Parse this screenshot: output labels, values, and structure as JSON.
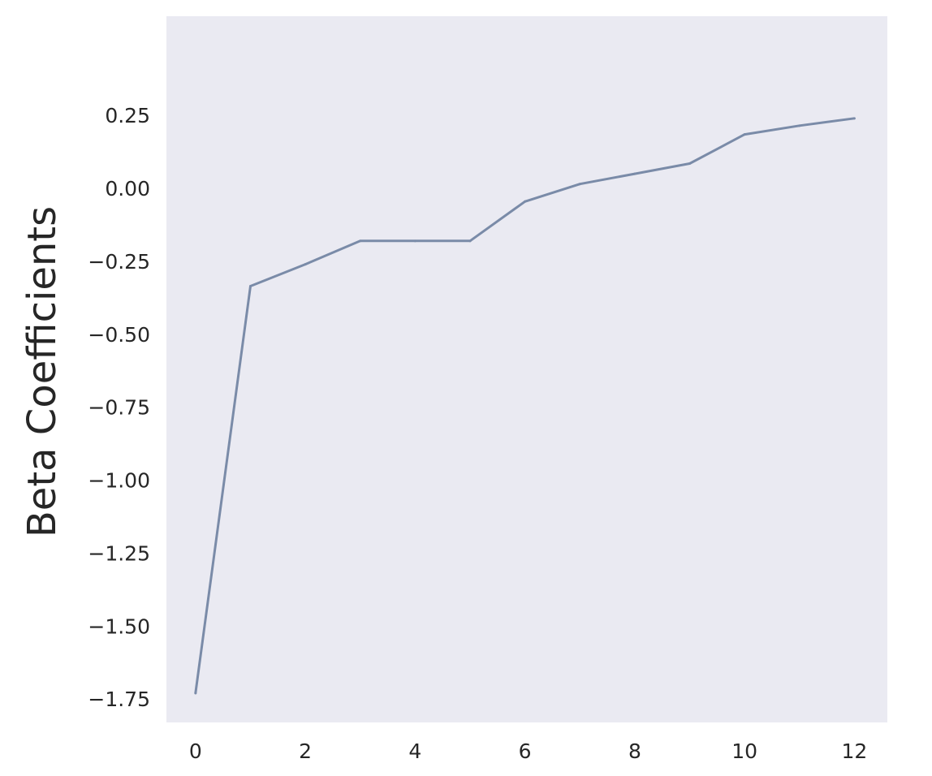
{
  "chart_data": {
    "type": "line",
    "title": "",
    "xlabel": "",
    "ylabel": "Beta Coefficients",
    "x": [
      0,
      1,
      2,
      3,
      4,
      5,
      6,
      7,
      8,
      9,
      10,
      11,
      12
    ],
    "series": [
      {
        "values": [
          -1.73,
          -0.335,
          -0.26,
          -0.18,
          -0.18,
          -0.18,
          -0.045,
          0.015,
          0.05,
          0.085,
          0.185,
          0.215,
          0.24
        ],
        "color": "#7a8ba8"
      }
    ],
    "xticks": [
      0,
      2,
      4,
      6,
      8,
      10,
      12
    ],
    "xtick_labels": [
      "0",
      "2",
      "4",
      "6",
      "8",
      "10",
      "12"
    ],
    "yticks": [
      0.25,
      0.0,
      -0.25,
      -0.5,
      -0.75,
      -1.0,
      -1.25,
      -1.5,
      -1.75
    ],
    "ytick_labels": [
      "0.25",
      "0.00",
      "−0.25",
      "−0.50",
      "−0.75",
      "−1.00",
      "−1.25",
      "−1.50",
      "−1.75"
    ],
    "xlim": [
      -0.53,
      12.6
    ],
    "ylim": [
      -1.83,
      0.59
    ],
    "grid": false,
    "background": "#eaeaf2"
  }
}
